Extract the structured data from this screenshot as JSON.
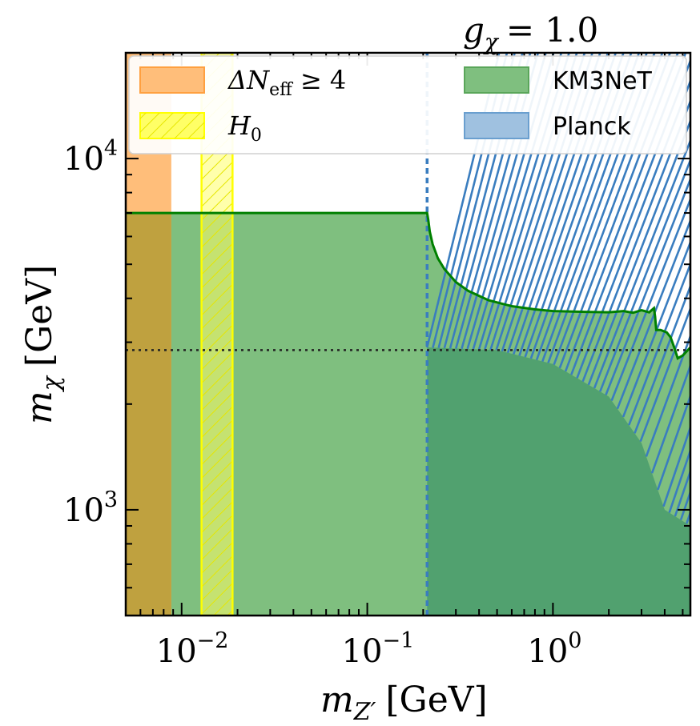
{
  "chart_data": {
    "type": "area",
    "coupling_label": "g_χ = 1.0",
    "coupling_symbol": "g",
    "coupling_subscript": "χ",
    "coupling_value": "= 1.0",
    "xlabel": {
      "symbol": "m",
      "subscript": "Z′",
      "unit": "[GeV]"
    },
    "ylabel": {
      "symbol": "m",
      "subscript": "χ",
      "unit": "[GeV]"
    },
    "xscale": "log",
    "yscale": "log",
    "xlim": [
      0.005,
      5.5
    ],
    "ylim": [
      500,
      20000
    ],
    "x_ticks": [
      {
        "value": 0.01,
        "base": "10",
        "exp": "−2"
      },
      {
        "value": 0.1,
        "base": "10",
        "exp": "−1"
      },
      {
        "value": 1,
        "base": "10",
        "exp": "0"
      }
    ],
    "y_ticks": [
      {
        "value": 1000,
        "base": "10",
        "exp": "3"
      },
      {
        "value": 10000,
        "base": "10",
        "exp": "4"
      }
    ],
    "legend_position": "top",
    "legend": [
      {
        "key": "neff",
        "label": "ΔN",
        "sub": "eff",
        "suffix": " ≥ 4",
        "color": "#ffbe7a"
      },
      {
        "key": "km3net",
        "label": "KM3NeT",
        "color": "#7fbf7f"
      },
      {
        "key": "h0",
        "label": "H",
        "sub": "0",
        "color": "#ffff66"
      },
      {
        "key": "planck",
        "label": "Planck",
        "color": "#9fc1e0"
      }
    ],
    "regions": {
      "delta_neff": {
        "x_range": [
          0.005,
          0.0088
        ],
        "color": "#ffa040"
      },
      "h0": {
        "x_range": [
          0.0128,
          0.0188
        ],
        "color": "#ffff00"
      },
      "km3net_boundary": {
        "x": [
          0.005,
          0.21,
          0.213,
          0.217,
          0.225,
          0.24,
          0.26,
          0.3,
          0.35,
          0.45,
          0.6,
          0.8,
          1.0,
          1.5,
          2.0,
          2.4,
          2.7,
          3.0,
          3.3,
          3.5,
          3.55,
          3.6,
          3.8,
          4.1,
          4.3,
          4.5,
          4.7,
          5.0,
          5.5
        ],
        "y": [
          7000,
          7000,
          6700,
          6200,
          5700,
          5200,
          4850,
          4450,
          4200,
          3950,
          3800,
          3720,
          3680,
          3660,
          3650,
          3680,
          3640,
          3700,
          3650,
          3750,
          3550,
          3250,
          3250,
          3200,
          3100,
          2900,
          2700,
          2750,
          2900
        ],
        "color": "#008000"
      },
      "planck": {
        "x_start": 0.21,
        "band_top_y": 20000,
        "lower_envelope_x": [
          0.21,
          0.5,
          1.0,
          2.0,
          3.0,
          4.0,
          5.5
        ],
        "lower_envelope_y": [
          2900,
          2850,
          2600,
          2100,
          1550,
          1000,
          900
        ],
        "color": "#3a7dbf"
      },
      "reference_line_y": 2850
    }
  }
}
